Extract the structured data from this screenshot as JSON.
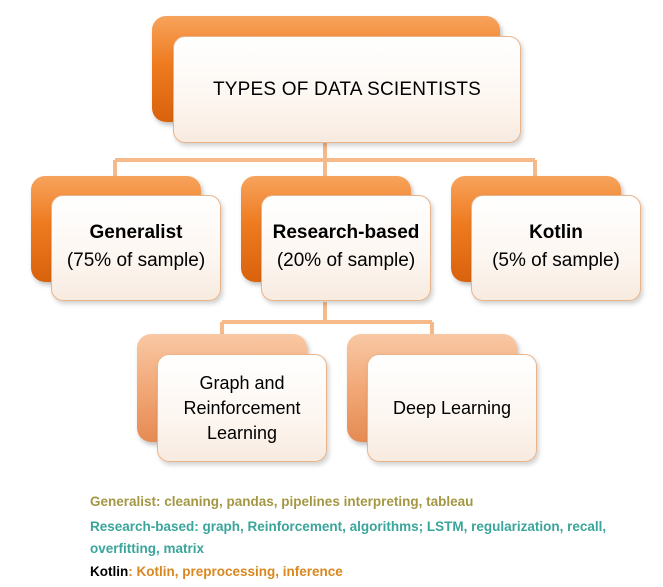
{
  "diagram": {
    "root": {
      "label": "TYPES OF DATA SCIENTISTS"
    },
    "types": [
      {
        "name": "Generalist",
        "share": "(75% of sample)"
      },
      {
        "name": "Research-based",
        "share": "(20% of sample)"
      },
      {
        "name": "Kotlin",
        "share": "(5% of sample)"
      }
    ],
    "subtypes": [
      {
        "label_lines": [
          "Graph and",
          "Reinforcement",
          "Learning"
        ]
      },
      {
        "label_lines": [
          "Deep Learning"
        ]
      }
    ],
    "connector_color": "#f5b98a",
    "accent_color": "#ee7b20"
  },
  "legend": [
    {
      "text": "Generalist: cleaning, pandas, pipelines interpreting, tableau",
      "color": "#a39743"
    },
    {
      "text": "Research-based: graph, Reinforcement, algorithms; LSTM, regularization, recall, overfitting, matrix",
      "color": "#3aa59b"
    },
    {
      "text": "Kotlin: Kotlin, preprocessing, inference",
      "color": "#d9871f",
      "prefix": "Kotlin",
      "prefix_color": "#000000",
      "rest": ": Kotlin, preprocessing, inference"
    }
  ]
}
